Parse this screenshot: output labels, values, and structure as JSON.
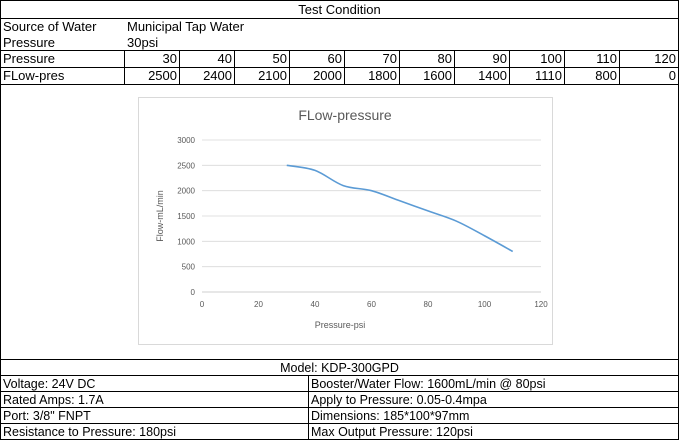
{
  "header": {
    "title": "Test Condition"
  },
  "conditions": [
    {
      "label": "Source of Water",
      "value": "Municipal Tap Water"
    },
    {
      "label": "Pressure",
      "value": "30psi"
    }
  ],
  "table": {
    "pressure_label": "Pressure",
    "pressure_values": [
      "30",
      "40",
      "50",
      "60",
      "70",
      "80",
      "90",
      "100",
      "110",
      "120"
    ],
    "flow_label": "FLow-pres",
    "flow_values": [
      "2500",
      "2400",
      "2100",
      "2000",
      "1800",
      "1600",
      "1400",
      "1110",
      "800",
      "0"
    ]
  },
  "chart_data": {
    "type": "line",
    "title": "FLow-pressure",
    "xlabel": "Pressure-psi",
    "ylabel": "Flow-mL/min",
    "xlim": [
      0,
      120
    ],
    "ylim": [
      0,
      3000
    ],
    "xticks": [
      0,
      20,
      40,
      60,
      80,
      100,
      120
    ],
    "yticks": [
      0,
      500,
      1000,
      1500,
      2000,
      2500,
      3000
    ],
    "grid": "horizontal",
    "line_color": "#5b9bd5",
    "x": [
      30,
      40,
      50,
      60,
      70,
      80,
      90,
      100,
      110
    ],
    "y": [
      2500,
      2400,
      2100,
      2000,
      1800,
      1600,
      1400,
      1110,
      800
    ]
  },
  "specs": {
    "model": "Model: KDP-300GPD",
    "left": [
      "Voltage: 24V DC",
      "Rated Amps: 1.7A",
      "Port: 3/8\" FNPT",
      "Resistance to Pressure: 180psi"
    ],
    "right": [
      "Booster/Water Flow: 1600mL/min @ 80psi",
      "Apply to Pressure: 0.05-0.4mpa",
      "Dimensions: 185*100*97mm",
      "Max Output Pressure: 120psi"
    ]
  }
}
